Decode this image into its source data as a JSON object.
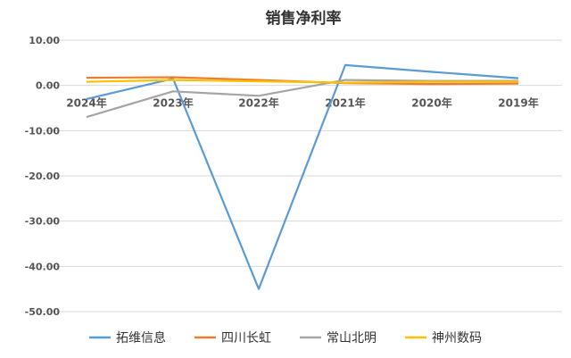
{
  "chart_data": {
    "type": "line",
    "title": "销售净利率",
    "xlabel": "",
    "ylabel": "",
    "categories": [
      "2024年",
      "2023年",
      "2022年",
      "2021年",
      "2020年",
      "2019年"
    ],
    "ylim": [
      -50,
      10
    ],
    "yticks": [
      "10.00",
      "0.00",
      "-10.00",
      "-20.00",
      "-30.00",
      "-40.00",
      "-50.00"
    ],
    "ytick_values": [
      10,
      0,
      -10,
      -20,
      -30,
      -40,
      -50
    ],
    "grid": true,
    "legend_position": "bottom",
    "series": [
      {
        "name": "拓维信息",
        "color": "#5B9BD5",
        "values": [
          -3.0,
          1.5,
          -45.0,
          4.5,
          3.0,
          1.6
        ]
      },
      {
        "name": "四川长虹",
        "color": "#ED7D31",
        "values": [
          1.7,
          1.8,
          1.2,
          0.5,
          0.3,
          0.4
        ]
      },
      {
        "name": "常山北明",
        "color": "#A5A5A5",
        "values": [
          -7.0,
          -1.3,
          -2.3,
          1.2,
          1.0,
          1.0
        ]
      },
      {
        "name": "神州数码",
        "color": "#FFC000",
        "values": [
          0.8,
          1.2,
          0.9,
          0.6,
          0.8,
          0.8
        ]
      }
    ]
  }
}
